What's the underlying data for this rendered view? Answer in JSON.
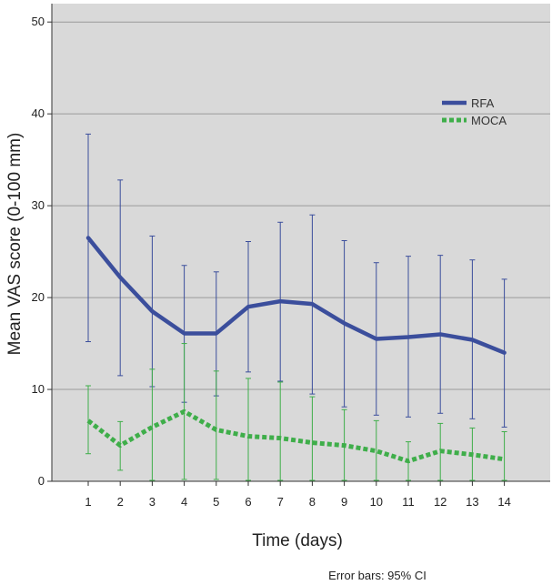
{
  "chart_data": {
    "type": "line",
    "x": [
      1,
      2,
      3,
      4,
      5,
      6,
      7,
      8,
      9,
      10,
      11,
      12,
      13,
      14
    ],
    "xlabel": "Time (days)",
    "ylabel": "Mean VAS score (0-100 mm)",
    "ylim": [
      0,
      52
    ],
    "yticks": [
      0,
      10,
      20,
      30,
      40,
      50
    ],
    "grid": true,
    "legend_placement": "top-right",
    "footnote": "Error bars: 95% CI",
    "series": [
      {
        "name": "RFA",
        "color": "#3b4e9c",
        "style": "solid",
        "values": [
          26.5,
          22.2,
          18.5,
          16.1,
          16.1,
          19.0,
          19.6,
          19.3,
          17.2,
          15.5,
          15.7,
          16.0,
          15.4,
          14.0
        ],
        "ci_low": [
          15.2,
          11.5,
          10.3,
          8.6,
          9.3,
          11.9,
          10.9,
          9.5,
          8.1,
          7.2,
          7.0,
          7.4,
          6.8,
          5.9
        ],
        "ci_high": [
          37.8,
          32.8,
          26.7,
          23.5,
          22.8,
          26.1,
          28.2,
          29.0,
          26.2,
          23.8,
          24.5,
          24.6,
          24.1,
          22.0
        ]
      },
      {
        "name": "MOCA",
        "color": "#3fae4a",
        "style": "dotted",
        "values": [
          6.6,
          3.9,
          5.9,
          7.6,
          5.6,
          4.9,
          4.7,
          4.2,
          3.9,
          3.3,
          2.2,
          3.3,
          2.9,
          2.4
        ],
        "ci_low": [
          3.0,
          1.2,
          0.1,
          0.2,
          0.2,
          0.1,
          0.1,
          0.1,
          0.1,
          0.1,
          0.1,
          0.1,
          0.1,
          0.1
        ],
        "ci_high": [
          10.4,
          6.5,
          12.2,
          15.0,
          12.0,
          11.2,
          10.8,
          9.2,
          7.8,
          6.6,
          4.3,
          6.3,
          5.8,
          5.4
        ]
      }
    ]
  }
}
